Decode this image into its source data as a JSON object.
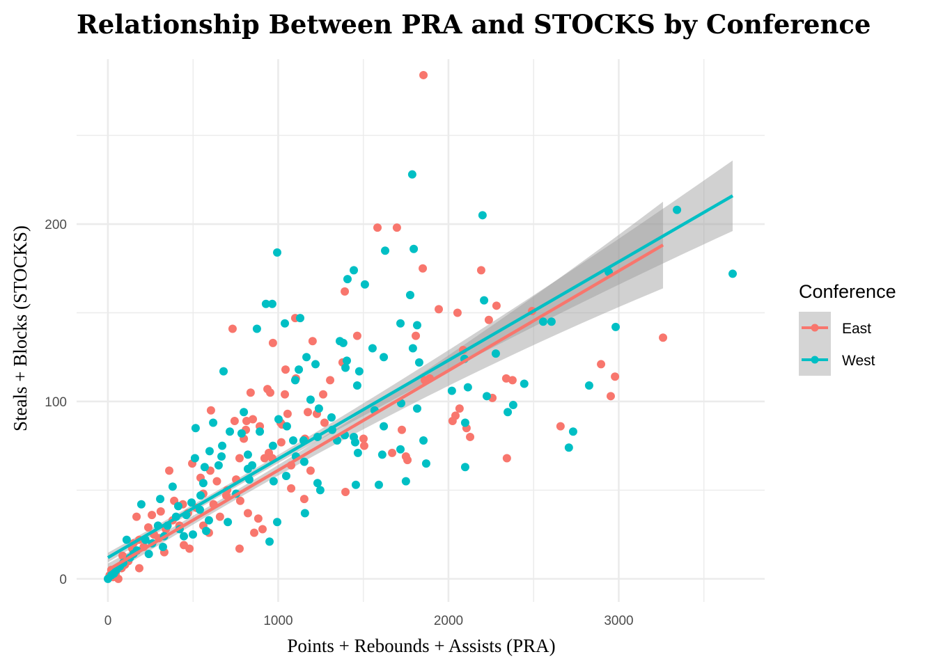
{
  "chart_data": {
    "type": "scatter",
    "title": "Relationship Between PRA and STOCKS by Conference",
    "xlabel": "Points + Rebounds + Assists (PRA)",
    "ylabel": "Steals + Blocks (STOCKS)",
    "xlim": [
      -184,
      3857
    ],
    "ylim": [
      -13,
      293
    ],
    "xticks": [
      0,
      1000,
      2000,
      3000
    ],
    "yticks": [
      0,
      100,
      200
    ],
    "grid": true,
    "legend": {
      "title": "Conference",
      "position": "right"
    },
    "series": [
      {
        "name": "East",
        "color": "#F8766D",
        "trend": {
          "method": "linear",
          "intercept": 5,
          "slope": 0.0562,
          "x_range": [
            0,
            3260
          ]
        },
        "points": [
          [
            1853,
            284
          ],
          [
            1583,
            198
          ],
          [
            1697,
            198
          ],
          [
            1849,
            175
          ],
          [
            2192,
            174
          ],
          [
            1391,
            162
          ],
          [
            732,
            141
          ],
          [
            1100,
            147
          ],
          [
            1943,
            152
          ],
          [
            2053,
            150
          ],
          [
            2282,
            154
          ],
          [
            2491,
            151
          ],
          [
            2237,
            146
          ],
          [
            1464,
            137
          ],
          [
            1808,
            137
          ],
          [
            969,
            133
          ],
          [
            1202,
            134
          ],
          [
            2086,
            129
          ],
          [
            2896,
            121
          ],
          [
            2978,
            114
          ],
          [
            3260,
            136
          ],
          [
            1043,
            118
          ],
          [
            1378,
            122
          ],
          [
            1104,
            113
          ],
          [
            1305,
            112
          ],
          [
            1890,
            113
          ],
          [
            1861,
            112
          ],
          [
            2339,
            113
          ],
          [
            2376,
            112
          ],
          [
            937,
            107
          ],
          [
            953,
            105
          ],
          [
            838,
            105
          ],
          [
            2953,
            103
          ],
          [
            2258,
            102
          ],
          [
            1039,
            104
          ],
          [
            1264,
            104
          ],
          [
            605,
            95
          ],
          [
            1055,
            93
          ],
          [
            1174,
            94
          ],
          [
            2065,
            96
          ],
          [
            2041,
            92
          ],
          [
            2024,
            89
          ],
          [
            2106,
            85
          ],
          [
            2127,
            80
          ],
          [
            2658,
            86
          ],
          [
            2343,
            68
          ],
          [
            1726,
            84
          ],
          [
            744,
            89
          ],
          [
            814,
            89
          ],
          [
            851,
            90
          ],
          [
            810,
            84
          ],
          [
            798,
            79
          ],
          [
            892,
            86
          ],
          [
            1014,
            88
          ],
          [
            1022,
            87
          ],
          [
            1227,
            93
          ],
          [
            1272,
            88
          ],
          [
            1018,
            77
          ],
          [
            1157,
            79
          ],
          [
            1501,
            79
          ],
          [
            1505,
            75
          ],
          [
            1750,
            69
          ],
          [
            1759,
            67
          ],
          [
            1669,
            71
          ],
          [
            945,
            71
          ],
          [
            965,
            68
          ],
          [
            1076,
            64
          ],
          [
            1190,
            61
          ],
          [
            1076,
            51
          ],
          [
            1153,
            45
          ],
          [
            1395,
            49
          ],
          [
            773,
            68
          ],
          [
            753,
            56
          ],
          [
            601,
            61
          ],
          [
            777,
            44
          ],
          [
            822,
            37
          ],
          [
            883,
            34
          ],
          [
            908,
            28
          ],
          [
            859,
            26
          ],
          [
            773,
            17
          ],
          [
            920,
            68
          ],
          [
            695,
            47
          ],
          [
            658,
            35
          ],
          [
            560,
            30
          ],
          [
            593,
            26
          ],
          [
            360,
            61
          ],
          [
            495,
            65
          ],
          [
            544,
            57
          ],
          [
            389,
            44
          ],
          [
            470,
            37
          ],
          [
            340,
            28
          ],
          [
            299,
            23
          ],
          [
            446,
            19
          ],
          [
            479,
            17
          ],
          [
            258,
            36
          ],
          [
            168,
            35
          ],
          [
            237,
            29
          ],
          [
            184,
            22
          ],
          [
            143,
            17
          ],
          [
            184,
            6
          ],
          [
            61,
            0
          ],
          [
            86,
            13
          ],
          [
            20,
            5
          ],
          [
            331,
            15
          ],
          [
            120,
            10
          ],
          [
            45,
            3
          ],
          [
            80,
            6
          ],
          [
            30,
            1
          ],
          [
            150,
            20
          ],
          [
            210,
            18
          ],
          [
            270,
            25
          ],
          [
            420,
            30
          ],
          [
            520,
            40
          ],
          [
            620,
            42
          ],
          [
            700,
            50
          ],
          [
            560,
            48
          ],
          [
            380,
            33
          ],
          [
            310,
            38
          ],
          [
            440,
            42
          ],
          [
            640,
            55
          ],
          [
            10,
            2
          ],
          [
            100,
            8
          ]
        ]
      },
      {
        "name": "West",
        "color": "#00BFC4",
        "trend": {
          "method": "linear",
          "intercept": 12,
          "slope": 0.0556,
          "x_range": [
            0,
            3669
          ]
        },
        "points": [
          [
            1787,
            228
          ],
          [
            2200,
            205
          ],
          [
            3342,
            208
          ],
          [
            1628,
            185
          ],
          [
            1796,
            186
          ],
          [
            994,
            184
          ],
          [
            1444,
            174
          ],
          [
            1407,
            169
          ],
          [
            1509,
            166
          ],
          [
            1775,
            160
          ],
          [
            928,
            155
          ],
          [
            965,
            155
          ],
          [
            2209,
            157
          ],
          [
            3669,
            172
          ],
          [
            2941,
            173
          ],
          [
            1129,
            147
          ],
          [
            1039,
            144
          ],
          [
            1718,
            144
          ],
          [
            1816,
            143
          ],
          [
            2556,
            145
          ],
          [
            2605,
            145
          ],
          [
            2982,
            142
          ],
          [
            875,
            141
          ],
          [
            1362,
            134
          ],
          [
            1382,
            133
          ],
          [
            1554,
            130
          ],
          [
            1791,
            130
          ],
          [
            2278,
            127
          ],
          [
            2094,
            124
          ],
          [
            1166,
            125
          ],
          [
            1620,
            125
          ],
          [
            1403,
            123
          ],
          [
            1828,
            122
          ],
          [
            1219,
            121
          ],
          [
            1395,
            119
          ],
          [
            1121,
            118
          ],
          [
            679,
            117
          ],
          [
            1476,
            117
          ],
          [
            1100,
            112
          ],
          [
            2445,
            110
          ],
          [
            2826,
            109
          ],
          [
            2114,
            108
          ],
          [
            2020,
            106
          ],
          [
            1464,
            109
          ],
          [
            2225,
            103
          ],
          [
            1190,
            101
          ],
          [
            1722,
            99
          ],
          [
            2380,
            98
          ],
          [
            1816,
            96
          ],
          [
            1239,
            96
          ],
          [
            2348,
            94
          ],
          [
            798,
            94
          ],
          [
            1566,
            95
          ],
          [
            618,
            88
          ],
          [
            515,
            85
          ],
          [
            892,
            83
          ],
          [
            1620,
            86
          ],
          [
            1853,
            78
          ],
          [
            2098,
            88
          ],
          [
            2732,
            83
          ],
          [
            2707,
            74
          ],
          [
            1718,
            73
          ],
          [
            2098,
            63
          ],
          [
            1869,
            65
          ],
          [
            1051,
            86
          ],
          [
            1313,
            91
          ],
          [
            1317,
            84
          ],
          [
            1088,
            78
          ],
          [
            1149,
            78
          ],
          [
            1231,
            80
          ],
          [
            1346,
            78
          ],
          [
            1391,
            81
          ],
          [
            1444,
            80
          ],
          [
            1452,
            77
          ],
          [
            1468,
            71
          ],
          [
            1611,
            70
          ],
          [
            1750,
            55
          ],
          [
            1591,
            53
          ],
          [
            1456,
            53
          ],
          [
            1002,
            90
          ],
          [
            969,
            75
          ],
          [
            1104,
            69
          ],
          [
            1153,
            66
          ],
          [
            973,
            55
          ],
          [
            1231,
            54
          ],
          [
            1247,
            50
          ],
          [
            1047,
            58
          ],
          [
            1157,
            37
          ],
          [
            994,
            32
          ],
          [
            949,
            21
          ],
          [
            671,
            75
          ],
          [
            716,
            83
          ],
          [
            667,
            69
          ],
          [
            650,
            64
          ],
          [
            597,
            72
          ],
          [
            785,
            82
          ],
          [
            822,
            70
          ],
          [
            847,
            64
          ],
          [
            822,
            62
          ],
          [
            830,
            56
          ],
          [
            753,
            48
          ],
          [
            704,
            32
          ],
          [
            511,
            68
          ],
          [
            568,
            63
          ],
          [
            560,
            54
          ],
          [
            544,
            47
          ],
          [
            380,
            52
          ],
          [
            307,
            45
          ],
          [
            413,
            41
          ],
          [
            491,
            43
          ],
          [
            593,
            33
          ],
          [
            421,
            28
          ],
          [
            294,
            30
          ],
          [
            323,
            18
          ],
          [
            196,
            42
          ],
          [
            110,
            22
          ],
          [
            540,
            39
          ],
          [
            577,
            27
          ],
          [
            499,
            25
          ],
          [
            446,
            24
          ],
          [
            20,
            2
          ],
          [
            50,
            5
          ],
          [
            90,
            9
          ],
          [
            130,
            12
          ],
          [
            170,
            16
          ],
          [
            220,
            22
          ],
          [
            260,
            20
          ],
          [
            350,
            30
          ],
          [
            400,
            35
          ],
          [
            460,
            36
          ],
          [
            0,
            0
          ],
          [
            35,
            3
          ],
          [
            70,
            7
          ],
          [
            150,
            14
          ],
          [
            240,
            14
          ],
          [
            330,
            24
          ]
        ]
      }
    ]
  }
}
